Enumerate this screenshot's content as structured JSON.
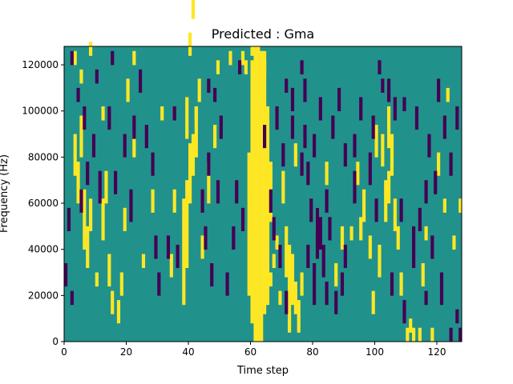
{
  "chart_data": {
    "type": "heatmap",
    "title": "Predicted : Gma",
    "xlabel": "Time step",
    "ylabel": "Frequency (Hz)",
    "xlim": [
      0,
      128
    ],
    "ylim": [
      0,
      128000
    ],
    "x_ticks": [
      0,
      20,
      40,
      60,
      80,
      100,
      120
    ],
    "y_ticks": [
      0,
      20000,
      40000,
      60000,
      80000,
      100000,
      120000
    ],
    "x_tick_labels": [
      "0",
      "20",
      "40",
      "60",
      "80",
      "100",
      "120"
    ],
    "y_tick_labels": [
      "0",
      "20000",
      "40000",
      "60000",
      "80000",
      "100000",
      "120000"
    ],
    "colormap": "viridis",
    "colors": {
      "background": "#21918c",
      "low": "#440154",
      "high": "#fde725"
    },
    "n_time_steps": 128,
    "n_freq_bins": 64,
    "bin_hz": 2000,
    "background_value": 0,
    "high_cells": [
      [
        61,
        0,
        63
      ],
      [
        62,
        0,
        63
      ],
      [
        63,
        0,
        62
      ],
      [
        60,
        4,
        60
      ],
      [
        64,
        6,
        60
      ],
      [
        65,
        8,
        50
      ],
      [
        59,
        10,
        40
      ],
      [
        66,
        12,
        14
      ],
      [
        66,
        26,
        38
      ],
      [
        62,
        52,
        55
      ],
      [
        63,
        52,
        56
      ],
      [
        61,
        58,
        60
      ],
      [
        72,
        2,
        20
      ],
      [
        73,
        8,
        18
      ],
      [
        74,
        6,
        12
      ],
      [
        75,
        2,
        8
      ],
      [
        76,
        10,
        14
      ],
      [
        71,
        14,
        24
      ],
      [
        70,
        30,
        36
      ],
      [
        74,
        38,
        42
      ],
      [
        38,
        8,
        30
      ],
      [
        39,
        16,
        34
      ],
      [
        40,
        30,
        42
      ],
      [
        41,
        36,
        44
      ],
      [
        42,
        40,
        50
      ],
      [
        39,
        44,
        52
      ],
      [
        43,
        52,
        56
      ],
      [
        40,
        62,
        66
      ],
      [
        41,
        70,
        74
      ],
      [
        42,
        48,
        50
      ],
      [
        44,
        18,
        22
      ],
      [
        46,
        30,
        38
      ],
      [
        48,
        42,
        46
      ],
      [
        3,
        36,
        44
      ],
      [
        4,
        30,
        38
      ],
      [
        5,
        40,
        48
      ],
      [
        6,
        20,
        32
      ],
      [
        7,
        16,
        24
      ],
      [
        8,
        24,
        30
      ],
      [
        10,
        12,
        14
      ],
      [
        12,
        22,
        30
      ],
      [
        13,
        30,
        36
      ],
      [
        14,
        12,
        18
      ],
      [
        15,
        6,
        10
      ],
      [
        17,
        4,
        8
      ],
      [
        18,
        10,
        14
      ],
      [
        19,
        24,
        28
      ],
      [
        22,
        40,
        44
      ],
      [
        25,
        16,
        18
      ],
      [
        28,
        28,
        32
      ],
      [
        34,
        14,
        18
      ],
      [
        35,
        28,
        32
      ],
      [
        103,
        26,
        34
      ],
      [
        104,
        30,
        36
      ],
      [
        105,
        36,
        44
      ],
      [
        106,
        24,
        30
      ],
      [
        102,
        38,
        44
      ],
      [
        101,
        14,
        20
      ],
      [
        99,
        6,
        10
      ],
      [
        100,
        40,
        46
      ],
      [
        98,
        18,
        22
      ],
      [
        107,
        20,
        24
      ],
      [
        108,
        10,
        14
      ],
      [
        104,
        42,
        50
      ],
      [
        96,
        26,
        32
      ],
      [
        95,
        22,
        26
      ],
      [
        94,
        34,
        38
      ],
      [
        110,
        0,
        2
      ],
      [
        111,
        2,
        4
      ],
      [
        112,
        0,
        2
      ],
      [
        114,
        0,
        2
      ],
      [
        118,
        0,
        2
      ],
      [
        115,
        12,
        16
      ],
      [
        116,
        22,
        24
      ],
      [
        122,
        28,
        30
      ],
      [
        87,
        12,
        16
      ],
      [
        81,
        24,
        28
      ],
      [
        84,
        34,
        38
      ],
      [
        89,
        20,
        24
      ],
      [
        92,
        22,
        24
      ],
      [
        123,
        52,
        54
      ],
      [
        127,
        28,
        30
      ],
      [
        125,
        20,
        22
      ],
      [
        120,
        36,
        40
      ],
      [
        5,
        56,
        58
      ],
      [
        12,
        48,
        50
      ],
      [
        8,
        62,
        64
      ],
      [
        3,
        60,
        62
      ],
      [
        20,
        52,
        56
      ],
      [
        22,
        60,
        62
      ],
      [
        31,
        48,
        50
      ],
      [
        49,
        58,
        60
      ],
      [
        53,
        60,
        62
      ],
      [
        57,
        60,
        62
      ],
      [
        58,
        58,
        60
      ],
      [
        64,
        58,
        62
      ],
      [
        60,
        62,
        63
      ],
      [
        67,
        16,
        18
      ],
      [
        68,
        20,
        22
      ],
      [
        69,
        8,
        10
      ]
    ],
    "low_cells": [
      [
        81,
        18,
        28
      ],
      [
        82,
        20,
        26
      ],
      [
        83,
        14,
        20
      ],
      [
        80,
        8,
        16
      ],
      [
        84,
        8,
        12
      ],
      [
        79,
        26,
        30
      ],
      [
        78,
        34,
        38
      ],
      [
        77,
        42,
        46
      ],
      [
        80,
        40,
        44
      ],
      [
        82,
        48,
        52
      ],
      [
        84,
        28,
        32
      ],
      [
        85,
        22,
        26
      ],
      [
        78,
        16,
        20
      ],
      [
        71,
        6,
        10
      ],
      [
        67,
        22,
        26
      ],
      [
        66,
        28,
        32
      ],
      [
        69,
        16,
        20
      ],
      [
        70,
        38,
        42
      ],
      [
        73,
        44,
        48
      ],
      [
        76,
        36,
        40
      ],
      [
        87,
        6,
        10
      ],
      [
        89,
        10,
        14
      ],
      [
        90,
        16,
        20
      ],
      [
        93,
        30,
        36
      ],
      [
        98,
        34,
        40
      ],
      [
        100,
        26,
        30
      ],
      [
        108,
        26,
        30
      ],
      [
        109,
        4,
        8
      ],
      [
        112,
        16,
        24
      ],
      [
        114,
        24,
        28
      ],
      [
        116,
        30,
        34
      ],
      [
        118,
        18,
        22
      ],
      [
        119,
        32,
        36
      ],
      [
        121,
        8,
        14
      ],
      [
        124,
        0,
        2
      ],
      [
        126,
        4,
        6
      ],
      [
        127,
        0,
        2
      ],
      [
        116,
        8,
        10
      ],
      [
        106,
        48,
        52
      ],
      [
        104,
        52,
        56
      ],
      [
        101,
        58,
        60
      ],
      [
        93,
        40,
        44
      ],
      [
        88,
        50,
        54
      ],
      [
        76,
        58,
        60
      ],
      [
        71,
        54,
        56
      ],
      [
        68,
        46,
        50
      ],
      [
        64,
        42,
        46
      ],
      [
        52,
        10,
        14
      ],
      [
        54,
        20,
        24
      ],
      [
        55,
        30,
        34
      ],
      [
        57,
        24,
        28
      ],
      [
        50,
        44,
        48
      ],
      [
        48,
        52,
        54
      ],
      [
        46,
        36,
        40
      ],
      [
        44,
        28,
        32
      ],
      [
        45,
        20,
        24
      ],
      [
        47,
        12,
        16
      ],
      [
        49,
        30,
        34
      ],
      [
        36,
        16,
        20
      ],
      [
        33,
        18,
        22
      ],
      [
        30,
        10,
        14
      ],
      [
        28,
        36,
        40
      ],
      [
        26,
        42,
        46
      ],
      [
        24,
        54,
        58
      ],
      [
        21,
        26,
        32
      ],
      [
        19,
        40,
        44
      ],
      [
        16,
        32,
        36
      ],
      [
        14,
        46,
        50
      ],
      [
        11,
        30,
        36
      ],
      [
        9,
        40,
        44
      ],
      [
        7,
        34,
        38
      ],
      [
        5,
        28,
        32
      ],
      [
        4,
        52,
        54
      ],
      [
        2,
        60,
        62
      ],
      [
        1,
        24,
        28
      ],
      [
        0,
        12,
        16
      ],
      [
        2,
        8,
        10
      ],
      [
        6,
        46,
        50
      ],
      [
        10,
        56,
        58
      ],
      [
        15,
        60,
        62
      ],
      [
        22,
        44,
        48
      ],
      [
        29,
        18,
        22
      ],
      [
        35,
        48,
        50
      ],
      [
        46,
        54,
        56
      ],
      [
        56,
        58,
        60
      ],
      [
        73,
        50,
        54
      ],
      [
        77,
        52,
        56
      ],
      [
        86,
        44,
        48
      ],
      [
        90,
        38,
        42
      ],
      [
        95,
        48,
        52
      ],
      [
        99,
        44,
        48
      ],
      [
        102,
        54,
        56
      ],
      [
        109,
        50,
        52
      ],
      [
        113,
        46,
        50
      ],
      [
        117,
        40,
        44
      ],
      [
        120,
        52,
        56
      ],
      [
        122,
        44,
        48
      ],
      [
        124,
        36,
        40
      ],
      [
        126,
        46,
        50
      ],
      [
        105,
        10,
        14
      ]
    ]
  }
}
